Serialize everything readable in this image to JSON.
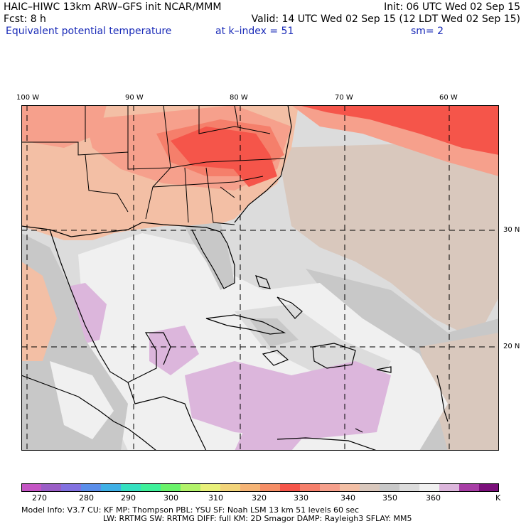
{
  "header": {
    "model_line": "HAIC–HIWC 13km ARW–GFS init   NCAR/MMM",
    "init_line": "Init: 06 UTC Wed 02 Sep 15",
    "fcst_line": "Fcst:    8 h",
    "valid_line": "Valid: 14 UTC Wed 02 Sep 15 (12 LDT Wed 02 Sep 15)",
    "field_name": "Equivalent potential temperature",
    "level_line": "at k–index =  51",
    "smooth_line": "sm= 2"
  },
  "map": {
    "lon_labels": [
      "100 W",
      "90 W",
      "80 W",
      "70 W",
      "60 W"
    ],
    "lat_labels": [
      "30 N",
      "20 N"
    ],
    "field_colors": {
      "warm_330": "#f5554a",
      "warm_325": "#f57f6b",
      "warm_335": "#f6a08c",
      "land_340": "#f3bfa5",
      "tan_345": "#d9c8bd",
      "gray_350": "#c8c8c8",
      "lightgray_355": "#dcdcdc",
      "white_360": "#f0f0f0",
      "lavender_365": "#dcb6dc"
    }
  },
  "colorbar": {
    "colors": [
      "#c455c4",
      "#9a5ec6",
      "#8271e0",
      "#5a8eea",
      "#3fb0e6",
      "#35e0c0",
      "#3ef09a",
      "#6af26a",
      "#b2f26a",
      "#e8f07a",
      "#f2d47a",
      "#f5b476",
      "#f58e66",
      "#f5554a",
      "#f57f6b",
      "#f6a08c",
      "#f3bfa5",
      "#d9c8bd",
      "#c8c8c8",
      "#dcdcdc",
      "#f0f0f0",
      "#dcb6dc",
      "#a73ea5",
      "#7a0f7a"
    ],
    "labels": [
      "270",
      "280",
      "290",
      "300",
      "310",
      "320",
      "330",
      "340",
      "350",
      "360"
    ],
    "unit": "K"
  },
  "model_info": {
    "line1": "Model Info: V3.7       CU: KF        MP: Thompson     PBL: YSU       SF: Noah LSM      13 km    51 levels    60 sec",
    "line2": "LW: RRTMG     SW: RRTMG   DIFF: full    KM: 2D Smagor DAMP: Rayleigh3  SFLAY: MM5"
  }
}
